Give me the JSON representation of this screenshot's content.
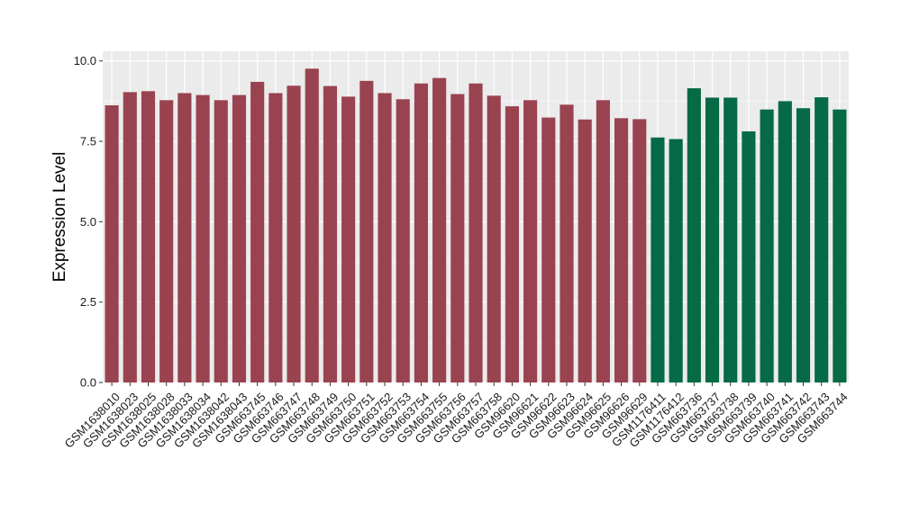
{
  "chart_data": {
    "type": "bar",
    "title": "",
    "xlabel": "",
    "ylabel": "Expression Level",
    "ylim": [
      0,
      10.3
    ],
    "yticks": [
      "0.0",
      "2.5",
      "5.0",
      "7.5",
      "10.0"
    ],
    "ytick_values": [
      0,
      2.5,
      5,
      7.5,
      10
    ],
    "grid": true,
    "legend": "none",
    "colors": {
      "group_a": "#9a4350",
      "group_b": "#056a45",
      "panel_bg": "#ebebeb",
      "grid": "#ffffff"
    },
    "categories": [
      "GSM1638010",
      "GSM1638023",
      "GSM1638025",
      "GSM1638028",
      "GSM1638033",
      "GSM1638034",
      "GSM1638042",
      "GSM1638043",
      "GSM663745",
      "GSM663746",
      "GSM663747",
      "GSM663748",
      "GSM663749",
      "GSM663750",
      "GSM663751",
      "GSM663752",
      "GSM663753",
      "GSM663754",
      "GSM663755",
      "GSM663756",
      "GSM663757",
      "GSM663758",
      "GSM96620",
      "GSM96621",
      "GSM96622",
      "GSM96623",
      "GSM96624",
      "GSM96625",
      "GSM96626",
      "GSM96629",
      "GSM1176411",
      "GSM1176412",
      "GSM663736",
      "GSM663737",
      "GSM663738",
      "GSM663739",
      "GSM663740",
      "GSM663741",
      "GSM663742",
      "GSM663743",
      "GSM663744"
    ],
    "values": [
      8.62,
      9.03,
      9.06,
      8.78,
      9.0,
      8.94,
      8.78,
      8.94,
      9.35,
      9.0,
      9.23,
      9.76,
      9.22,
      8.89,
      9.38,
      9.0,
      8.81,
      9.3,
      9.47,
      8.97,
      9.3,
      8.92,
      8.59,
      8.78,
      8.24,
      8.64,
      8.18,
      8.78,
      8.22,
      8.19,
      7.62,
      7.57,
      9.15,
      8.86,
      8.86,
      7.81,
      8.49,
      8.75,
      8.53,
      8.87,
      8.49
    ],
    "groups": [
      "a",
      "a",
      "a",
      "a",
      "a",
      "a",
      "a",
      "a",
      "a",
      "a",
      "a",
      "a",
      "a",
      "a",
      "a",
      "a",
      "a",
      "a",
      "a",
      "a",
      "a",
      "a",
      "a",
      "a",
      "a",
      "a",
      "a",
      "a",
      "a",
      "a",
      "b",
      "b",
      "b",
      "b",
      "b",
      "b",
      "b",
      "b",
      "b",
      "b",
      "b"
    ]
  }
}
